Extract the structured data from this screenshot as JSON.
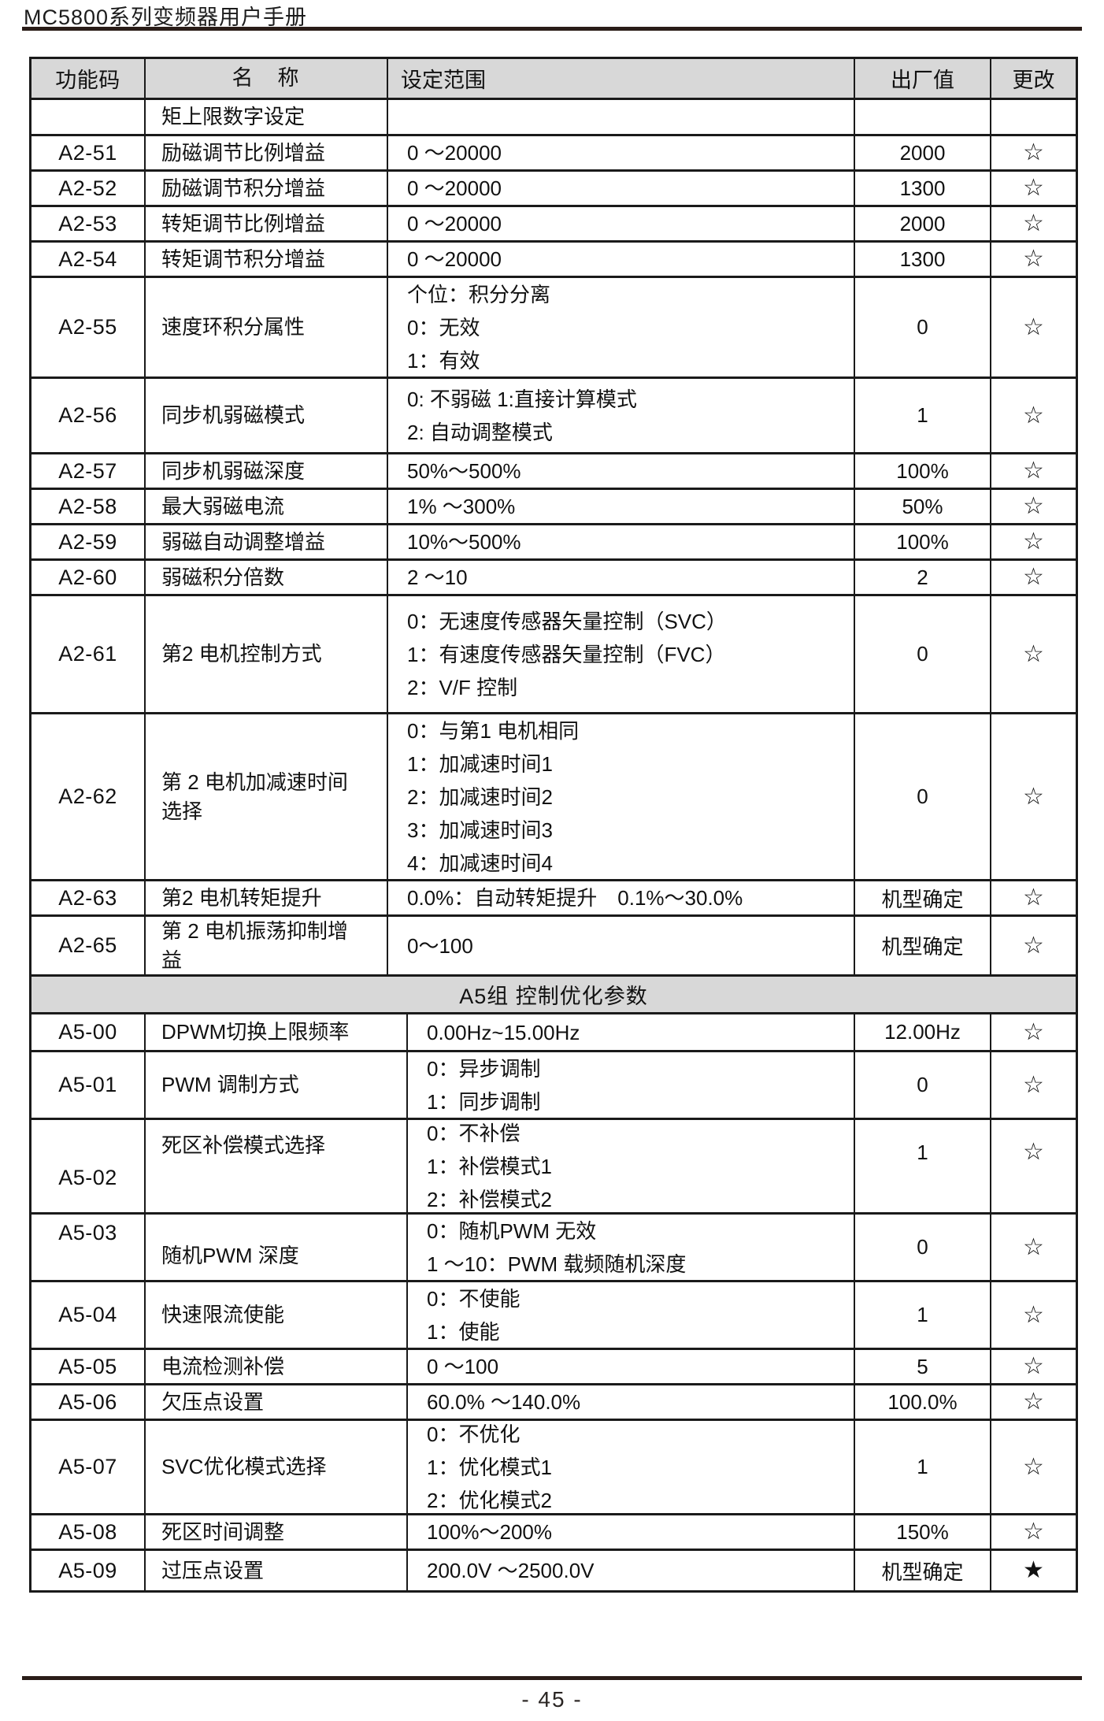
{
  "page": {
    "header_title": "MC5800系列变频器用户手册",
    "page_number": "- 45 -"
  },
  "colors": {
    "header_bg": "#d8d8d8",
    "table_border": "#1a1a1a",
    "rule": "#2a1d18"
  },
  "icons": {
    "star_outline": "☆",
    "star_filled": "★"
  },
  "table": {
    "columns": [
      "功能码",
      "名　称",
      "设定范围",
      "出厂值",
      "更改"
    ],
    "rows": [
      {
        "type": "data",
        "code": "",
        "name": "矩上限数字设定",
        "range_lines": [],
        "default": "",
        "change": ""
      },
      {
        "type": "data",
        "code": "A2-51",
        "name": "励磁调节比例增益",
        "range_lines": [
          "0 ～20000"
        ],
        "default": "2000",
        "change": "☆"
      },
      {
        "type": "data",
        "code": "A2-52",
        "name": "励磁调节积分增益",
        "range_lines": [
          "0 ～20000"
        ],
        "default": "1300",
        "change": "☆"
      },
      {
        "type": "data",
        "code": "A2-53",
        "name": "转矩调节比例增益",
        "range_lines": [
          "0 ～20000"
        ],
        "default": "2000",
        "change": "☆"
      },
      {
        "type": "data",
        "code": "A2-54",
        "name": "转矩调节积分增益",
        "range_lines": [
          "0 ～20000"
        ],
        "default": "1300",
        "change": "☆"
      },
      {
        "type": "data",
        "code": "A2-55",
        "name": "速度环积分属性",
        "range_lines": [
          "个位：积分分离",
          "0：无效",
          "1：有效"
        ],
        "default": "0",
        "change": "☆"
      },
      {
        "type": "data",
        "code": "A2-56",
        "name": "同步机弱磁模式",
        "range_lines": [
          "0: 不弱磁  1:直接计算模式",
          "2: 自动调整模式"
        ],
        "default": "1",
        "change": "☆"
      },
      {
        "type": "data",
        "code": "A2-57",
        "name": "同步机弱磁深度",
        "range_lines": [
          "50%～500%"
        ],
        "default": "100%",
        "change": "☆"
      },
      {
        "type": "data",
        "code": "A2-58",
        "name": "最大弱磁电流",
        "range_lines": [
          "1% ～300%"
        ],
        "default": "50%",
        "change": "☆"
      },
      {
        "type": "data",
        "code": "A2-59",
        "name": "弱磁自动调整增益",
        "range_lines": [
          "10%～500%"
        ],
        "default": "100%",
        "change": "☆"
      },
      {
        "type": "data",
        "code": "A2-60",
        "name": "弱磁积分倍数",
        "range_lines": [
          "2 ～10"
        ],
        "default": "2",
        "change": "☆"
      },
      {
        "type": "data",
        "code": "A2-61",
        "name": "第2 电机控制方式",
        "range_lines": [
          "0：无速度传感器矢量控制（SVC）",
          "1：有速度传感器矢量控制（FVC）",
          "2：V/F 控制"
        ],
        "default": "0",
        "change": "☆"
      },
      {
        "type": "data",
        "code": "A2-62",
        "name": "第 2 电机加减速时间选择",
        "range_lines": [
          "0：与第1 电机相同",
          "1：加减速时间1",
          "2：加减速时间2",
          "3：加减速时间3",
          "4：加减速时间4"
        ],
        "default": "0",
        "change": "☆"
      },
      {
        "type": "data",
        "code": "A2-63",
        "name": "第2 电机转矩提升",
        "range_lines": [
          "0.0%：自动转矩提升　0.1%～30.0%"
        ],
        "default": "机型确定",
        "change": "☆"
      },
      {
        "type": "data",
        "code": "A2-65",
        "name": "第 2 电机振荡抑制增益",
        "range_lines": [
          "0～100"
        ],
        "default": "机型确定",
        "change": "☆"
      },
      {
        "type": "section",
        "label": "A5组 控制优化参数"
      },
      {
        "type": "data",
        "code": "A5-00",
        "name": "DPWM切换上限频率",
        "range_lines": [
          "0.00Hz~15.00Hz"
        ],
        "default": "12.00Hz",
        "change": "☆"
      },
      {
        "type": "data",
        "code": "A5-01",
        "name": "PWM 调制方式",
        "range_lines": [
          "0：异步调制",
          "1：同步调制"
        ],
        "default": "0",
        "change": "☆"
      },
      {
        "type": "data",
        "code": "A5-02",
        "name": "死区补偿模式选择",
        "range_lines": [
          "0：不补偿",
          "1：补偿模式1",
          "2：补偿模式2"
        ],
        "default": "1",
        "change": "☆"
      },
      {
        "type": "data",
        "code": "A5-03",
        "name": "随机PWM 深度",
        "range_lines": [
          "0：随机PWM 无效",
          "1 ～10：PWM 载频随机深度"
        ],
        "default": "0",
        "change": "☆"
      },
      {
        "type": "data",
        "code": "A5-04",
        "name": "快速限流使能",
        "range_lines": [
          "0：不使能",
          "1：使能"
        ],
        "default": "1",
        "change": "☆"
      },
      {
        "type": "data",
        "code": "A5-05",
        "name": "电流检测补偿",
        "range_lines": [
          "0 ～100"
        ],
        "default": "5",
        "change": "☆"
      },
      {
        "type": "data",
        "code": "A5-06",
        "name": "欠压点设置",
        "range_lines": [
          "60.0% ～140.0%"
        ],
        "default": "100.0%",
        "change": "☆"
      },
      {
        "type": "data",
        "code": "A5-07",
        "name": "SVC优化模式选择",
        "range_lines": [
          "0：不优化",
          "1：优化模式1",
          "2：优化模式2"
        ],
        "default": "1",
        "change": "☆"
      },
      {
        "type": "data",
        "code": "A5-08",
        "name": "死区时间调整",
        "range_lines": [
          "100%～200%"
        ],
        "default": "150%",
        "change": "☆"
      },
      {
        "type": "data",
        "code": "A5-09",
        "name": "过压点设置",
        "range_lines": [
          "200.0V ～2500.0V"
        ],
        "default": "机型确定",
        "change": "★"
      }
    ]
  }
}
